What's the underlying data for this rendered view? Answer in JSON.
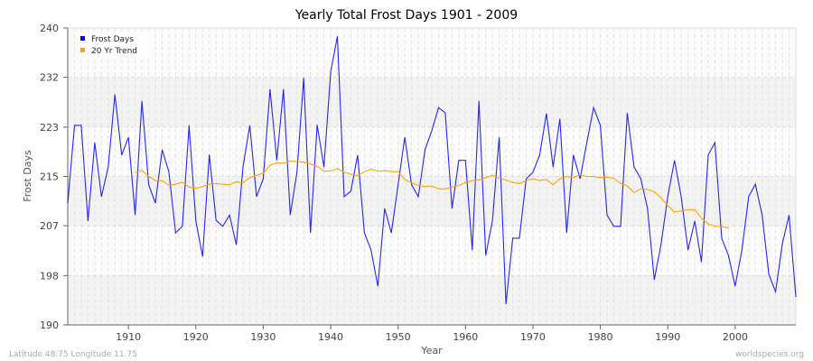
{
  "chart_data": {
    "type": "line",
    "title": "Yearly Total Frost Days 1901 - 2009",
    "xlabel": "Year",
    "ylabel": "Frost Days",
    "xlim": [
      1901,
      2009
    ],
    "ylim": [
      190,
      240
    ],
    "x_ticks": [
      1910,
      1920,
      1930,
      1940,
      1950,
      1960,
      1970,
      1980,
      1990,
      2000
    ],
    "y_ticks": [
      190,
      198.3,
      206.7,
      215,
      223.3,
      231.7,
      240
    ],
    "y_tick_labels": [
      "190",
      "198",
      "207",
      "215",
      "223",
      "232",
      "240"
    ],
    "grid": true,
    "legend_placement": "top-left",
    "series": [
      {
        "name": "Frost Days",
        "color": "#0000ff",
        "x_start": 1901,
        "values": [
          210.5,
          223.6,
          223.6,
          207.5,
          220.7,
          211.6,
          216.6,
          228.8,
          218.6,
          221.6,
          208.5,
          227.7,
          213.6,
          210.5,
          219.5,
          215.8,
          205.5,
          206.6,
          223.6,
          207.5,
          201.5,
          218.7,
          207.6,
          206.6,
          208.5,
          203.5,
          216.6,
          223.6,
          211.6,
          214.6,
          229.7,
          217.7,
          229.7,
          208.5,
          215.7,
          231.6,
          205.5,
          223.7,
          216.6,
          232.6,
          238.6,
          211.6,
          212.5,
          218.6,
          205.5,
          202.6,
          196.5,
          209.6,
          205.5,
          213.6,
          221.6,
          213.6,
          211.6,
          219.5,
          222.7,
          226.6,
          225.7,
          209.6,
          217.7,
          217.7,
          202.6,
          227.7,
          201.7,
          207.6,
          221.6,
          193.5,
          204.6,
          204.6,
          214.6,
          215.7,
          218.6,
          225.6,
          216.6,
          224.7,
          205.5,
          218.6,
          214.6,
          220.7,
          226.6,
          223.6,
          208.5,
          206.6,
          206.6,
          225.7,
          216.6,
          214.6,
          209.6,
          197.6,
          203.5,
          211.6,
          217.7,
          211.6,
          202.6,
          207.5,
          200.6,
          218.6,
          220.7,
          204.6,
          201.7,
          196.5,
          202.6,
          211.6,
          213.7,
          208.5,
          198.5,
          195.6,
          203.7,
          208.5,
          194.7
        ]
      },
      {
        "name": "20 Yr Trend",
        "color": "#ffa500",
        "x_start": 1911,
        "values": [
          215.7,
          216.0,
          215.0,
          214.3,
          214.3,
          213.5,
          213.7,
          214.0,
          213.2,
          213.0,
          213.3,
          213.7,
          213.8,
          213.7,
          213.6,
          214.1,
          213.9,
          214.8,
          215.2,
          215.5,
          216.9,
          217.3,
          217.2,
          217.6,
          217.5,
          217.4,
          217.1,
          216.7,
          215.9,
          215.9,
          216.3,
          215.7,
          215.4,
          215.1,
          215.8,
          216.2,
          215.9,
          216.0,
          215.8,
          215.8,
          214.5,
          213.9,
          213.5,
          213.3,
          213.4,
          212.9,
          212.9,
          213.2,
          213.5,
          214.0,
          214.3,
          214.4,
          214.8,
          215.2,
          214.7,
          214.4,
          214.0,
          213.8,
          214.3,
          214.6,
          214.3,
          214.5,
          213.6,
          214.6,
          215.0,
          214.8,
          215.3,
          215.0,
          215.0,
          214.8,
          214.9,
          214.7,
          213.8,
          213.4,
          212.3,
          212.9,
          212.8,
          212.4,
          211.4,
          210.1,
          209.0,
          209.2,
          209.4,
          209.4,
          208.0,
          207.0,
          206.6,
          206.6,
          206.3
        ]
      }
    ]
  },
  "footer": {
    "location": "Latitude 48.75 Longitude 11.75",
    "site": "worldspecies.org"
  }
}
